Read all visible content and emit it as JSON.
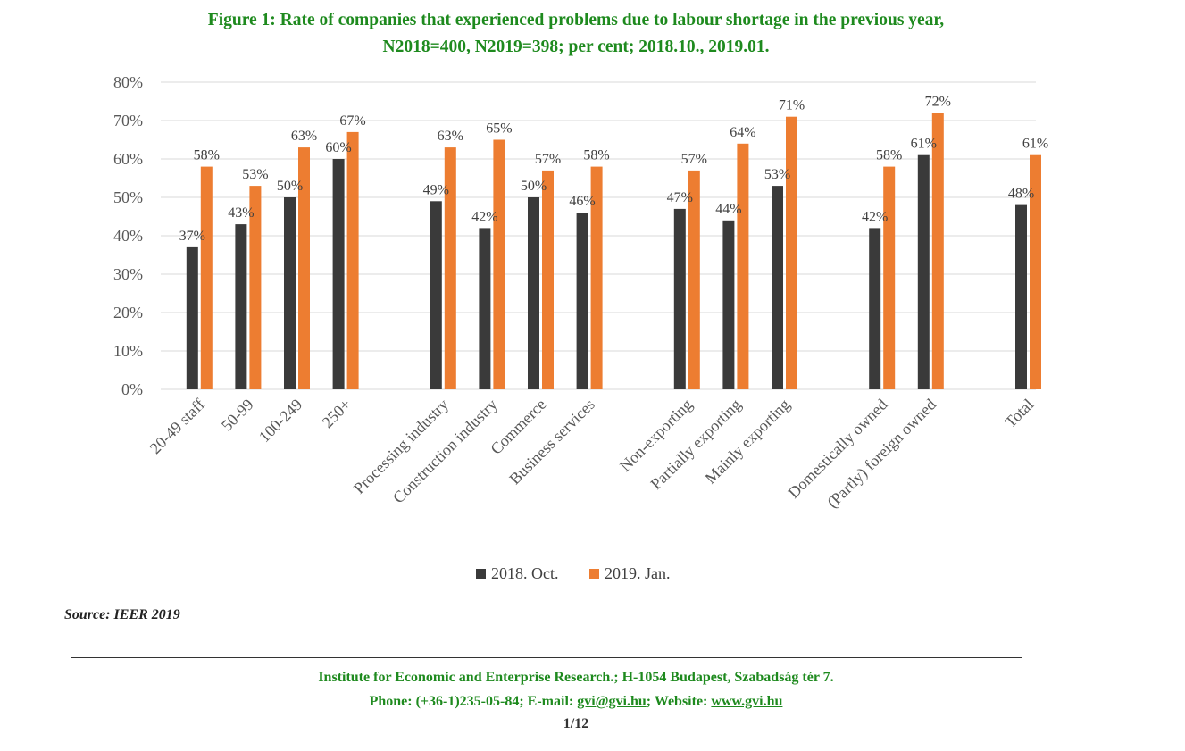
{
  "title_line1": "Figure 1: Rate of companies that experienced problems due to labour shortage in the previous year,",
  "title_line2": "N2018=400, N2019=398; per cent; 2018.10., 2019.01.",
  "source": "Source: IEER 2019",
  "footer": {
    "line1": "Institute for Economic and Enterprise Research.; H-1054 Budapest, Szabadság tér 7.",
    "phone_label": "Phone: (+36-1)235-05-84; E-mail: ",
    "email": "gvi@gvi.hu",
    "website_label": ";  Website: ",
    "website": "www.gvi.hu",
    "page": "1/12"
  },
  "colors": {
    "series1": "#3a3a3a",
    "series2": "#ed7d31",
    "grid": "#d9d9d9",
    "title": "#1e8a1e"
  },
  "chart_data": {
    "type": "bar",
    "categories": [
      "20-49 staff",
      "50-99",
      "100-249",
      "250+",
      "Processing industry",
      "Construction industry",
      "Commerce",
      "Business services",
      "Non-exporting",
      "Partially exporting",
      "Mainly exporting",
      "Domestically owned",
      "(Partly) foreign owned",
      "Total"
    ],
    "groups": [
      [
        0,
        1,
        2,
        3
      ],
      [
        4,
        5,
        6,
        7
      ],
      [
        8,
        9,
        10
      ],
      [
        11,
        12
      ],
      [
        13
      ]
    ],
    "series": [
      {
        "name": "2018. Oct.",
        "values": [
          37,
          43,
          50,
          60,
          49,
          42,
          50,
          46,
          47,
          44,
          53,
          42,
          61,
          48
        ],
        "labels": [
          "37%",
          "43%",
          "50%",
          "60%",
          "49%",
          "42%",
          "50%",
          "46%",
          "47%",
          "44%",
          "53%",
          "42%",
          "61%",
          "48%"
        ]
      },
      {
        "name": "2019. Jan.",
        "values": [
          58,
          53,
          63,
          67,
          63,
          65,
          57,
          58,
          57,
          64,
          71,
          58,
          72,
          61
        ],
        "labels": [
          "58%",
          "53%",
          "63%",
          "67%",
          "63%",
          "65%",
          "57%",
          "58%",
          "57%",
          "64%",
          "71%",
          "58%",
          "72%",
          "61%"
        ]
      }
    ],
    "ylim": [
      0,
      80
    ],
    "yticks": [
      "0%",
      "10%",
      "20%",
      "30%",
      "40%",
      "50%",
      "60%",
      "70%",
      "80%"
    ],
    "grid": true,
    "legend": "bottom"
  }
}
